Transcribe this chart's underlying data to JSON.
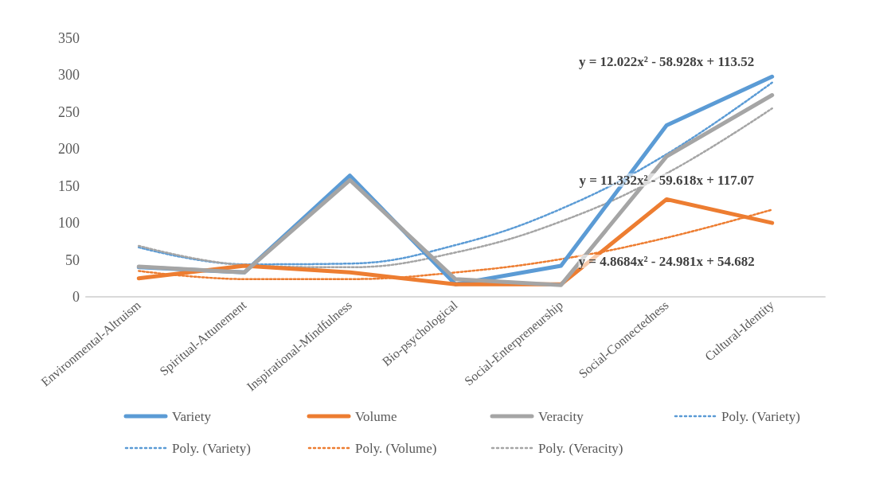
{
  "chart_data": {
    "type": "line",
    "categories": [
      "Environmental-Altruism",
      "Spiritual-Attunement",
      "Inspirational-Mindfulness",
      "Bio-psychological",
      "Social-Enterpreneurship",
      "Social-Connectedness",
      "Cultural-Identity"
    ],
    "series": [
      {
        "name": "Variety",
        "color": "#5b9bd5",
        "values": [
          40,
          33,
          164,
          17,
          42,
          232,
          298
        ]
      },
      {
        "name": "Volume",
        "color": "#ed7d31",
        "values": [
          25,
          42,
          33,
          17,
          17,
          132,
          100
        ]
      },
      {
        "name": "Veracity",
        "color": "#a5a5a5",
        "values": [
          41,
          33,
          158,
          24,
          16,
          190,
          273
        ]
      },
      {
        "name": "Poly. (Variety)",
        "color": "#5b9bd5",
        "line_style": "dotted",
        "values": [
          67,
          44,
          45,
          70,
          119,
          193,
          290
        ]
      },
      {
        "name": "Poly. (Variety)",
        "color": "#5b9bd5",
        "line_style": "dotted",
        "values": [
          null,
          null,
          null,
          null,
          null,
          null,
          null
        ]
      },
      {
        "name": "Poly. (Volume)",
        "color": "#ed7d31",
        "line_style": "dotted",
        "values": [
          35,
          24,
          24,
          33,
          51,
          80,
          118
        ]
      },
      {
        "name": "Poly. (Veracity)",
        "color": "#a5a5a5",
        "line_style": "dotted",
        "values": [
          69,
          43,
          40,
          60,
          102,
          167,
          255
        ]
      }
    ],
    "ylim": [
      0,
      350
    ],
    "yticks": [
      0,
      50,
      100,
      150,
      200,
      250,
      300,
      350
    ],
    "grid": false,
    "legend": "bottom",
    "marker": "none",
    "line_style": "solid",
    "annotations": [
      "y = 12.022x² - 58.928x + 113.52",
      "y = 11.332x² - 59.618x + 117.07",
      "y = 4.8684x² - 24.981x + 54.682"
    ]
  }
}
